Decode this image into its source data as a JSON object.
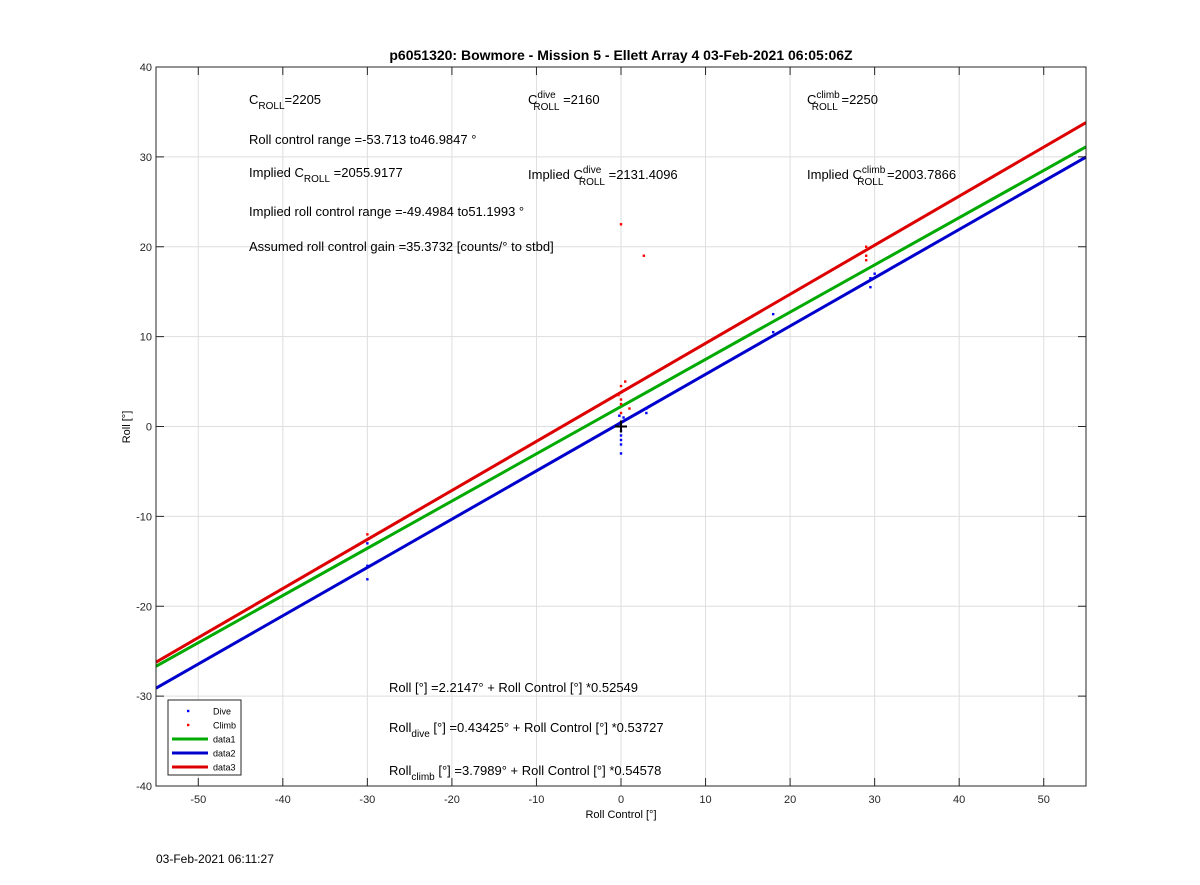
{
  "chart_data": {
    "type": "scatter",
    "title": "p6051320: Bowmore - Mission 5 - Ellett Array 4 03-Feb-2021 06:05:06Z",
    "xlabel": "Roll Control [°]",
    "ylabel": "Roll [°]",
    "xlim": [
      -55,
      55
    ],
    "ylim": [
      -40,
      40
    ],
    "xticks": [
      -50,
      -40,
      -30,
      -20,
      -10,
      0,
      10,
      20,
      30,
      40,
      50
    ],
    "yticks": [
      -40,
      -30,
      -20,
      -10,
      0,
      10,
      20,
      30,
      40
    ],
    "grid": true,
    "legend_position": "bottom-left",
    "colors": {
      "dive": "#0000ff",
      "climb": "#ff0000",
      "data1": "#00aa00",
      "data2": "#0000cc",
      "data3": "#dd0000",
      "center_marker": "#000000"
    },
    "series": [
      {
        "name": "Dive",
        "kind": "points",
        "color": "#0000ff",
        "points": [
          [
            -30,
            -17
          ],
          [
            -30,
            -15.5
          ],
          [
            -30,
            -13
          ],
          [
            0,
            -3
          ],
          [
            0,
            -2
          ],
          [
            0,
            -1.5
          ],
          [
            0,
            -1
          ],
          [
            0,
            -0.5
          ],
          [
            0,
            0
          ],
          [
            0,
            0.5
          ],
          [
            0.3,
            1
          ],
          [
            -0.2,
            1.2
          ],
          [
            3,
            1.5
          ],
          [
            3,
            2
          ],
          [
            18,
            10.5
          ],
          [
            18,
            12.5
          ],
          [
            29.5,
            15.5
          ],
          [
            29.5,
            16.5
          ],
          [
            30,
            17
          ]
        ]
      },
      {
        "name": "Climb",
        "kind": "points",
        "color": "#ff0000",
        "points": [
          [
            -30,
            -12
          ],
          [
            0,
            22.5
          ],
          [
            2.7,
            19
          ],
          [
            0,
            1.5
          ],
          [
            0,
            2.5
          ],
          [
            0,
            3
          ],
          [
            -0.3,
            3.5
          ],
          [
            0.3,
            4
          ],
          [
            0,
            4.5
          ],
          [
            0.5,
            5
          ],
          [
            1,
            2
          ],
          [
            29,
            18.5
          ],
          [
            29,
            19
          ],
          [
            29,
            20
          ]
        ]
      },
      {
        "name": "data1",
        "kind": "line",
        "color": "#00aa00",
        "intercept": 2.2147,
        "slope": 0.52549
      },
      {
        "name": "data2",
        "kind": "line",
        "color": "#0000cc",
        "intercept": 0.43425,
        "slope": 0.53727
      },
      {
        "name": "data3",
        "kind": "line",
        "color": "#dd0000",
        "intercept": 3.7989,
        "slope": 0.54578
      }
    ],
    "annotations": {
      "c_roll": {
        "pre": "C",
        "sub": "ROLL",
        "post": "=2205"
      },
      "c_roll_dive": {
        "pre": "C",
        "sup": "dive",
        "sub": "ROLL",
        "post": " =2160"
      },
      "c_roll_climb": {
        "pre": "C",
        "sup": "climb",
        "sub": "ROLL",
        "post": " =2250"
      },
      "roll_range": "Roll control range =-53.713 to46.9847 °",
      "implied_c_roll": {
        "pre": "Implied C",
        "sub": "ROLL",
        "post": " =2055.9177"
      },
      "implied_c_roll_dive": {
        "pre": "Implied C",
        "sup": "dive",
        "sub": "ROLL",
        "post": " =2131.4096"
      },
      "implied_c_roll_climb": {
        "pre": "Implied C",
        "sup": "climb",
        "sub": "ROLL",
        "post": " =2003.7866"
      },
      "implied_range": "Implied roll control range =-49.4984 to51.1993 °",
      "gain": "Assumed roll control gain =35.3732 [counts/° to stbd]",
      "fit_all": {
        "pre": "Roll [°] =2.2147° + Roll Control [°] *0.52549"
      },
      "fit_dive": {
        "pre": "Roll",
        "sub": "dive",
        "post": " [°] =0.43425° + Roll Control [°] *0.53727"
      },
      "fit_climb": {
        "pre": "Roll",
        "sub": "climb",
        "post": " [°] =3.7989° + Roll Control [°] *0.54578"
      }
    }
  },
  "footer": {
    "timestamp": "03-Feb-2021 06:11:27"
  }
}
